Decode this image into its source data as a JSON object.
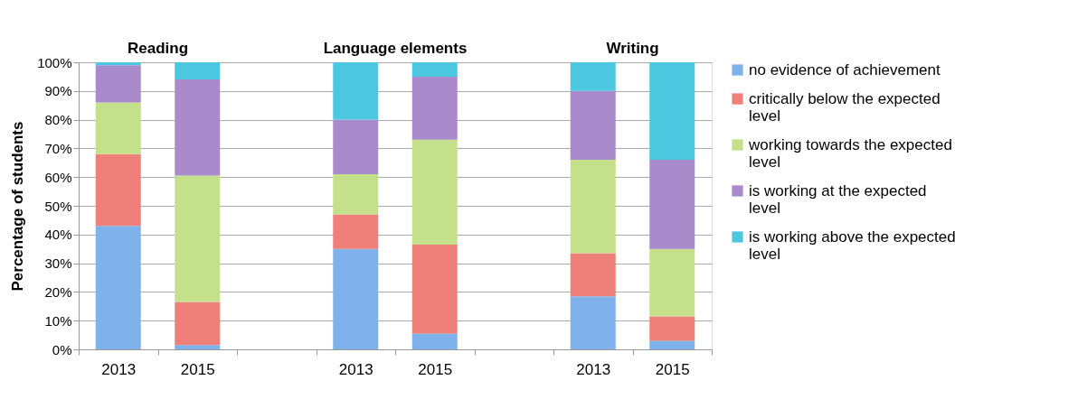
{
  "chart_data": {
    "type": "bar",
    "stacked": true,
    "ylabel": "Percentage of students",
    "categories": [
      "2013",
      "2015",
      null,
      "2013",
      "2015",
      null,
      "2013",
      "2015"
    ],
    "annotations": [
      "Reading",
      "Language elements",
      "Writing"
    ],
    "series": [
      {
        "name": "no evidence of achievement",
        "color": "#7fb1ea",
        "values": [
          43,
          1.5,
          null,
          35,
          5.5,
          null,
          18.5,
          3
        ]
      },
      {
        "name": "critically below the expected level",
        "color": "#ee7f79",
        "values": [
          25,
          15,
          null,
          12,
          31,
          null,
          15,
          8.5
        ]
      },
      {
        "name": "working towards the expected level",
        "color": "#c4e08a",
        "values": [
          18,
          44,
          null,
          14,
          36.5,
          null,
          32.5,
          23.5
        ]
      },
      {
        "name": "is working at the expected level",
        "color": "#a98bcb",
        "values": [
          13,
          33.5,
          null,
          19,
          22,
          null,
          24,
          31
        ]
      },
      {
        "name": "is working above the expected level",
        "color": "#4bc8e0",
        "values": [
          1,
          6,
          null,
          20,
          5,
          null,
          10,
          34
        ]
      }
    ],
    "ylim": [
      0,
      100
    ],
    "yticks": [
      {
        "value": 0,
        "label": "0%"
      },
      {
        "value": 10,
        "label": "10%"
      },
      {
        "value": 20,
        "label": "20%"
      },
      {
        "value": 30,
        "label": "30%"
      },
      {
        "value": 40,
        "label": "40%"
      },
      {
        "value": 50,
        "label": "50%"
      },
      {
        "value": 60,
        "label": "60%"
      },
      {
        "value": 70,
        "label": "70%"
      },
      {
        "value": 80,
        "label": "80%"
      },
      {
        "value": 90,
        "label": "90%"
      },
      {
        "value": 100,
        "label": "100%"
      }
    ],
    "grid": "y",
    "legend": "right"
  }
}
